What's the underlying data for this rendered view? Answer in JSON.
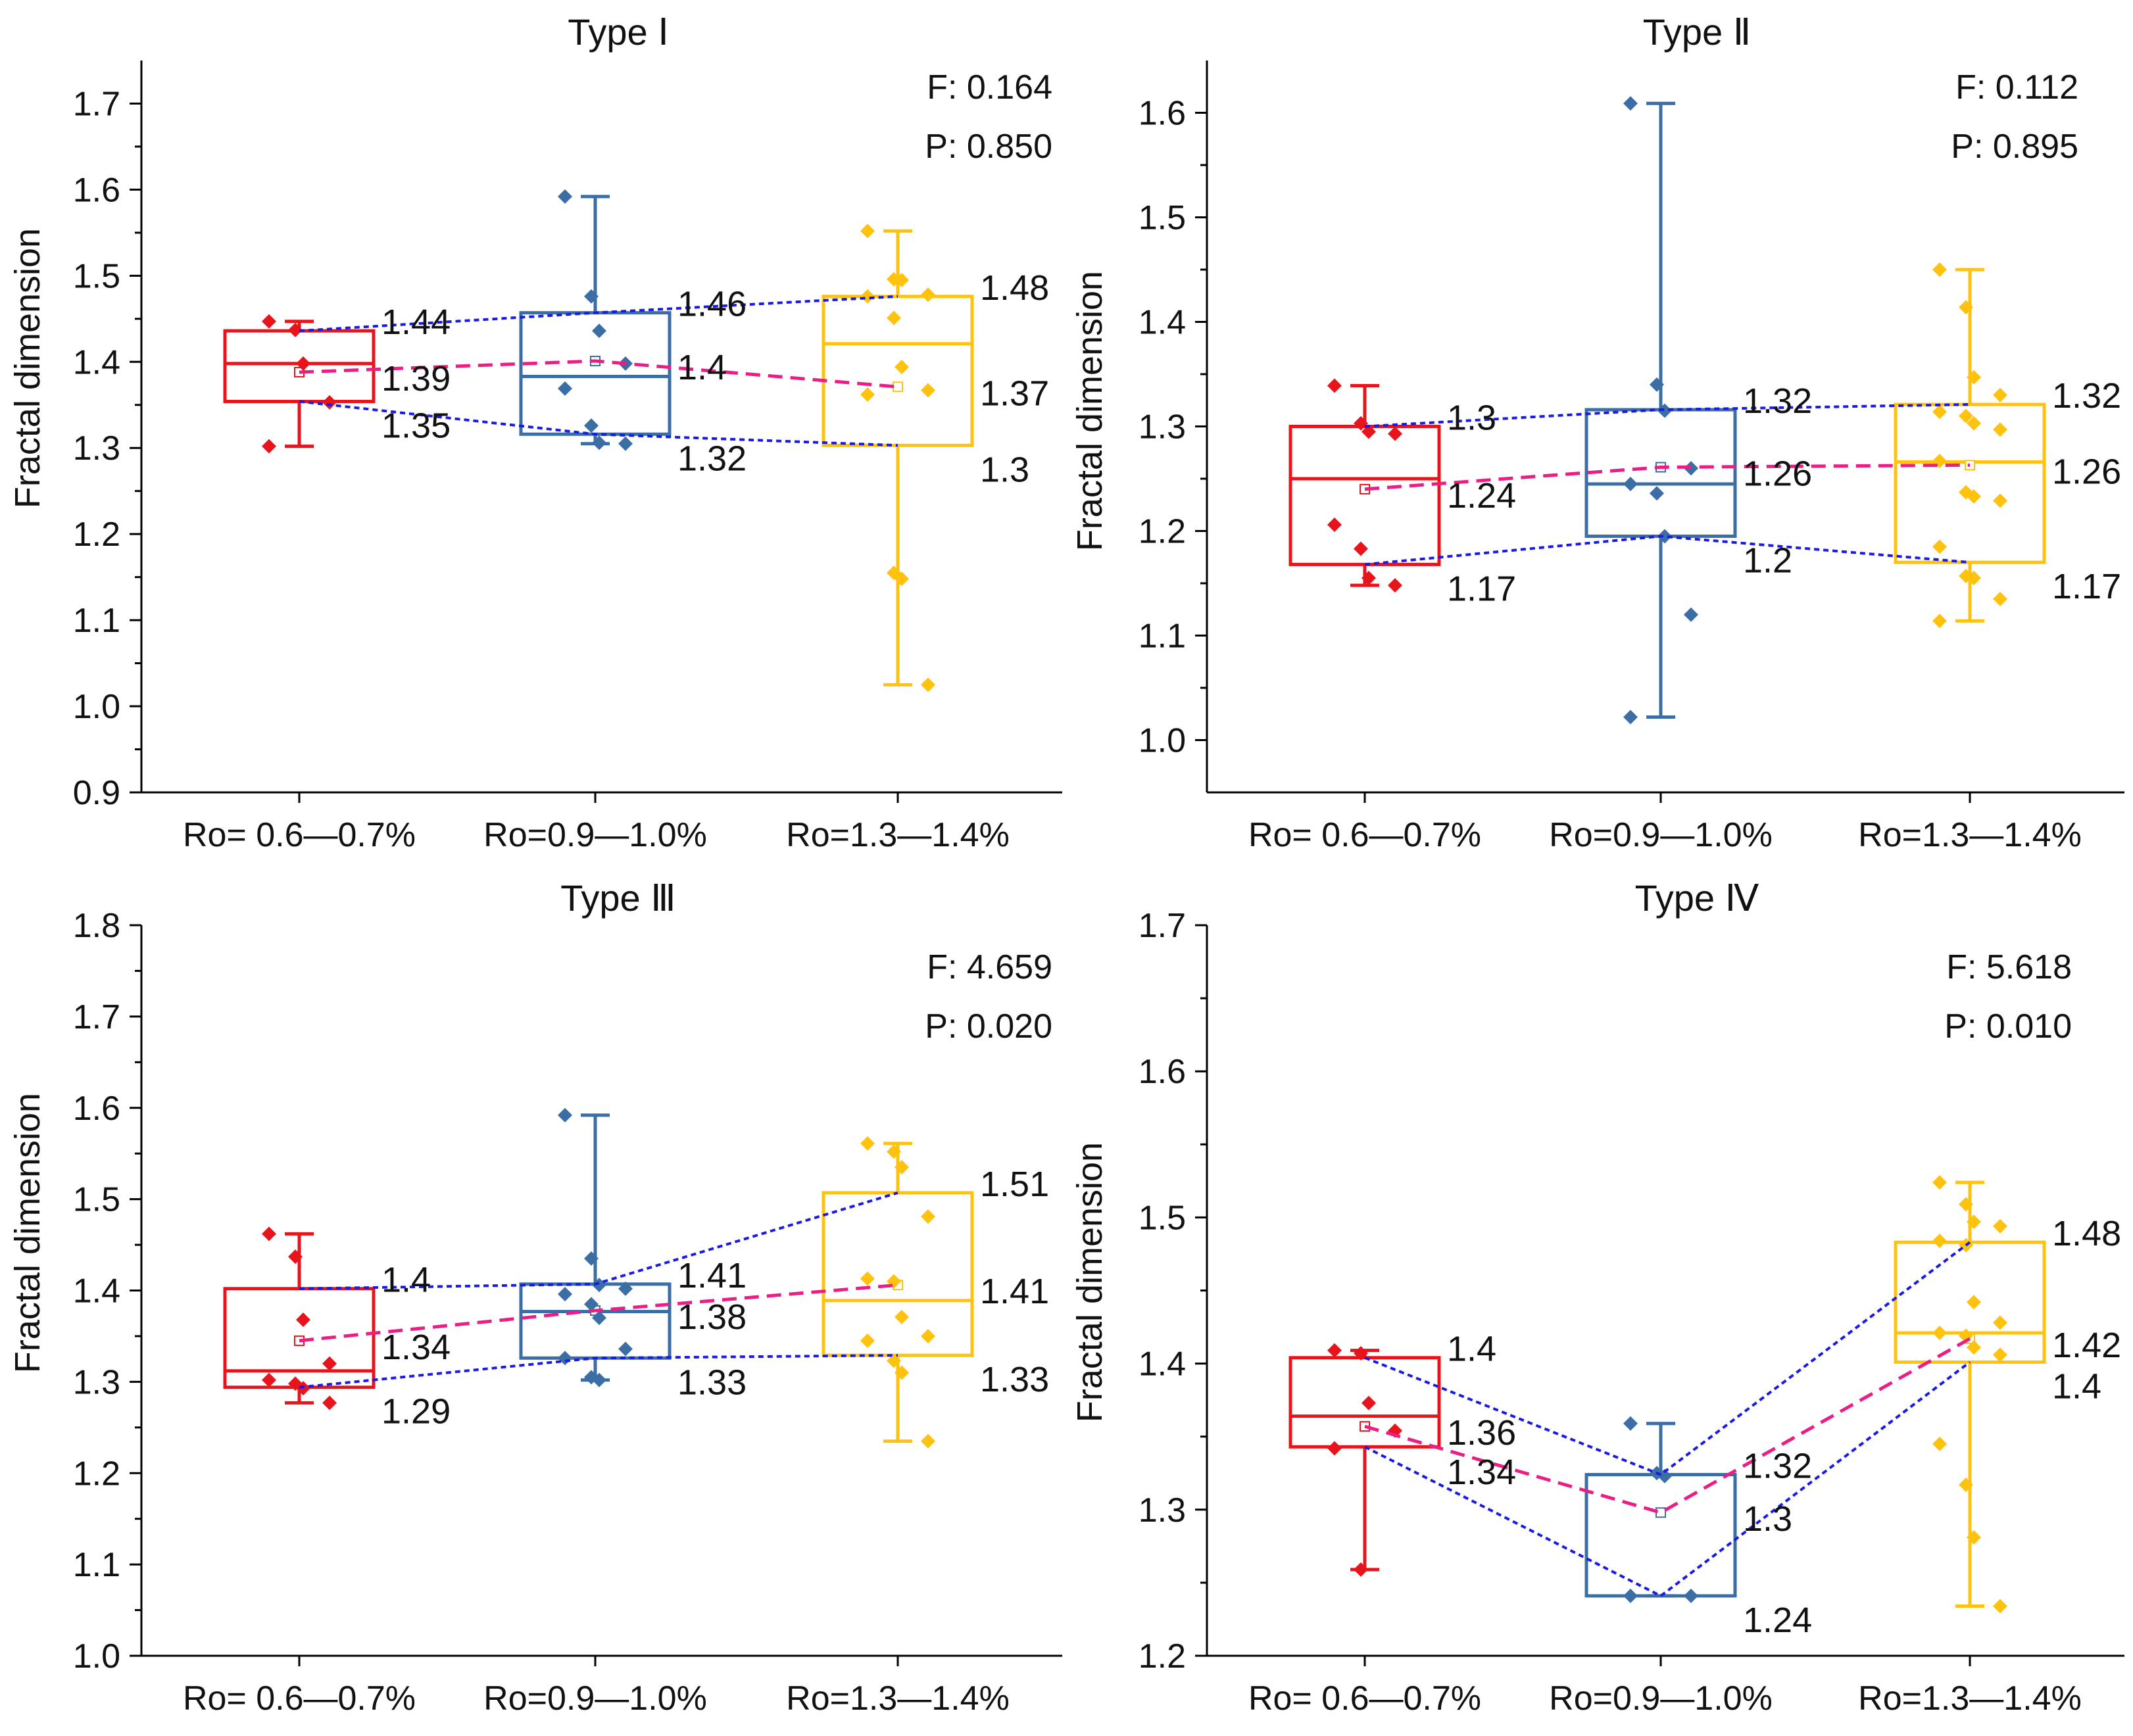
{
  "figure": {
    "ylabel": "Fractal dimension"
  },
  "colors": {
    "low": "#e8141c",
    "mid": "#3a6ea5",
    "high": "#ffc20e",
    "mean_line": "#ea1e84",
    "quartile_line": "#1a1ae6"
  },
  "chart_data": [
    {
      "type": "box",
      "title": "Type Ⅰ",
      "xlabel": "",
      "ylabel": "Fractal dimension",
      "ylim": [
        0.9,
        1.75
      ],
      "yticks": [
        "0.9",
        "1.0",
        "1.1",
        "1.2",
        "1.3",
        "1.4",
        "1.5",
        "1.6",
        "1.7"
      ],
      "categories": [
        "Ro= 0.6—0.7%",
        "Ro=0.9—1.0%",
        "Ro=1.3—1.4%"
      ],
      "stats": {
        "F": "F: 0.164",
        "P": "P: 0.850"
      },
      "boxes": [
        {
          "min": 1.302,
          "q1": 1.354,
          "median": 1.398,
          "q3": 1.436,
          "max": 1.447,
          "mean": 1.388,
          "points": [
            1.447,
            1.437,
            1.398,
            1.353,
            1.302
          ],
          "labels": {
            "q3": "1.44",
            "mean": "1.39",
            "q1": "1.35"
          }
        },
        {
          "min": 1.305,
          "q1": 1.316,
          "median": 1.383,
          "q3": 1.457,
          "max": 1.592,
          "mean": 1.401,
          "points": [
            1.592,
            1.476,
            1.436,
            1.398,
            1.369,
            1.326,
            1.306,
            1.305
          ],
          "labels": {
            "q3": "1.46",
            "mean": "1.4",
            "q1": "1.32"
          }
        },
        {
          "min": 1.025,
          "q1": 1.303,
          "median": 1.421,
          "q3": 1.476,
          "max": 1.552,
          "mean": 1.371,
          "points": [
            1.552,
            1.496,
            1.495,
            1.478,
            1.476,
            1.451,
            1.394,
            1.367,
            1.362,
            1.155,
            1.148,
            1.025
          ],
          "labels": {
            "q3": "1.48",
            "mean": "1.37",
            "q1": "1.3"
          }
        }
      ]
    },
    {
      "type": "box",
      "title": "Type Ⅱ",
      "xlabel": "",
      "ylabel": "Fractal dimension",
      "ylim": [
        0.95,
        1.65
      ],
      "yticks": [
        "1.0",
        "1.1",
        "1.2",
        "1.3",
        "1.4",
        "1.5",
        "1.6"
      ],
      "categories": [
        "Ro= 0.6—0.7%",
        "Ro=0.9—1.0%",
        "Ro=1.3—1.4%"
      ],
      "stats": {
        "F": "F: 0.112",
        "P": "P: 0.895"
      },
      "boxes": [
        {
          "min": 1.148,
          "q1": 1.168,
          "median": 1.25,
          "q3": 1.3,
          "max": 1.339,
          "mean": 1.24,
          "points": [
            1.339,
            1.303,
            1.295,
            1.293,
            1.206,
            1.183,
            1.155,
            1.148
          ],
          "labels": {
            "q3": "1.3",
            "mean": "1.24",
            "q1": "1.17"
          }
        },
        {
          "min": 1.022,
          "q1": 1.195,
          "median": 1.245,
          "q3": 1.316,
          "max": 1.609,
          "mean": 1.261,
          "points": [
            1.609,
            1.34,
            1.315,
            1.26,
            1.245,
            1.236,
            1.195,
            1.12,
            1.022
          ],
          "labels": {
            "q3": "1.32",
            "mean": "1.26",
            "q1": "1.2"
          }
        },
        {
          "min": 1.114,
          "q1": 1.17,
          "median": 1.266,
          "q3": 1.321,
          "max": 1.45,
          "mean": 1.263,
          "points": [
            1.45,
            1.414,
            1.347,
            1.33,
            1.314,
            1.31,
            1.303,
            1.297,
            1.267,
            1.237,
            1.233,
            1.229,
            1.185,
            1.157,
            1.155,
            1.135,
            1.114
          ],
          "labels": {
            "q3": "1.32",
            "mean": "1.26",
            "q1": "1.17"
          }
        }
      ]
    },
    {
      "type": "box",
      "title": "Type Ⅲ",
      "xlabel": "",
      "ylabel": "Fractal dimension",
      "ylim": [
        1.0,
        1.8
      ],
      "yticks": [
        "1.0",
        "1.1",
        "1.2",
        "1.3",
        "1.4",
        "1.5",
        "1.6",
        "1.7",
        "1.8"
      ],
      "categories": [
        "Ro= 0.6—0.7%",
        "Ro=0.9—1.0%",
        "Ro=1.3—1.4%"
      ],
      "stats": {
        "F": "F: 4.659",
        "P": "P: 0.020"
      },
      "boxes": [
        {
          "min": 1.277,
          "q1": 1.294,
          "median": 1.312,
          "q3": 1.402,
          "max": 1.462,
          "mean": 1.345,
          "points": [
            1.462,
            1.437,
            1.368,
            1.32,
            1.302,
            1.298,
            1.293,
            1.277
          ],
          "labels": {
            "q3": "1.4",
            "mean": "1.34",
            "q1": "1.29"
          }
        },
        {
          "min": 1.302,
          "q1": 1.326,
          "median": 1.377,
          "q3": 1.407,
          "max": 1.592,
          "mean": 1.378,
          "points": [
            1.592,
            1.435,
            1.406,
            1.402,
            1.396,
            1.385,
            1.37,
            1.336,
            1.326,
            1.305,
            1.302
          ],
          "labels": {
            "q3": "1.41",
            "mean": "1.38",
            "q1": "1.33"
          }
        },
        {
          "min": 1.235,
          "q1": 1.329,
          "median": 1.389,
          "q3": 1.507,
          "max": 1.561,
          "mean": 1.406,
          "points": [
            1.561,
            1.552,
            1.535,
            1.481,
            1.413,
            1.41,
            1.371,
            1.35,
            1.345,
            1.323,
            1.31,
            1.235
          ],
          "labels": {
            "q3": "1.51",
            "mean": "1.41",
            "q1": "1.33"
          }
        }
      ]
    },
    {
      "type": "box",
      "title": "Type Ⅳ",
      "xlabel": "",
      "ylabel": "Fractal dimension",
      "ylim": [
        1.2,
        1.7
      ],
      "yticks": [
        "1.2",
        "1.3",
        "1.4",
        "1.5",
        "1.6",
        "1.7"
      ],
      "categories": [
        "Ro= 0.6—0.7%",
        "Ro=0.9—1.0%",
        "Ro=1.3—1.4%"
      ],
      "stats": {
        "F": "F: 5.618",
        "P": "P: 0.010"
      },
      "boxes": [
        {
          "min": 1.259,
          "q1": 1.343,
          "median": 1.364,
          "q3": 1.404,
          "max": 1.409,
          "mean": 1.357,
          "points": [
            1.409,
            1.407,
            1.373,
            1.354,
            1.342,
            1.259
          ],
          "labels": {
            "q3": "1.4",
            "mean": "1.36",
            "q1": "1.34"
          }
        },
        {
          "min": 1.241,
          "q1": 1.241,
          "median": 1.324,
          "q3": 1.324,
          "max": 1.359,
          "mean": 1.298,
          "points": [
            1.359,
            1.325,
            1.323,
            1.241,
            1.241
          ],
          "labels": {
            "q3": "1.32",
            "mean": "1.3",
            "q1": "1.24"
          }
        },
        {
          "min": 1.234,
          "q1": 1.401,
          "median": 1.421,
          "q3": 1.483,
          "max": 1.524,
          "mean": 1.417,
          "points": [
            1.524,
            1.509,
            1.497,
            1.494,
            1.484,
            1.481,
            1.442,
            1.428,
            1.421,
            1.419,
            1.411,
            1.406,
            1.345,
            1.317,
            1.281,
            1.234
          ],
          "labels": {
            "q3": "1.48",
            "mean": "1.42",
            "q1": "1.4"
          }
        }
      ]
    }
  ]
}
